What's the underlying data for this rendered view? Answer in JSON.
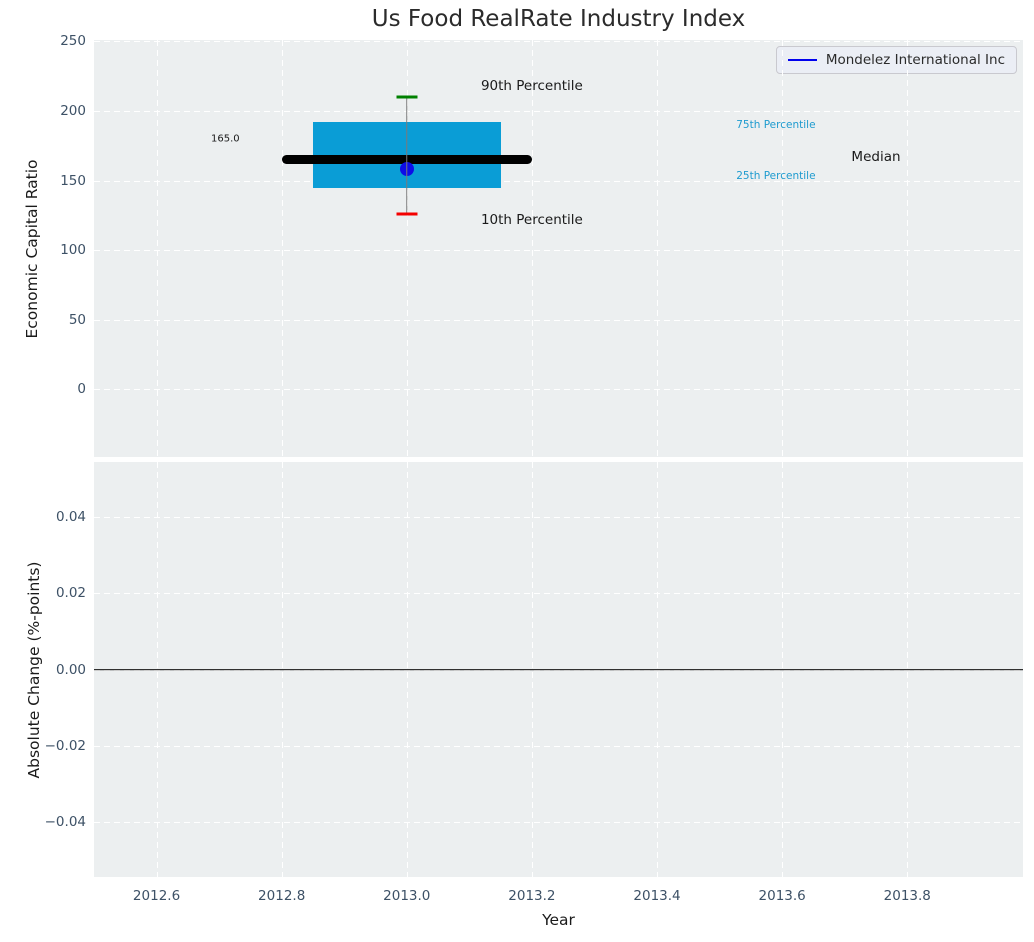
{
  "figure": {
    "background": "#ffffff",
    "axes_background": "#eceff0",
    "grid_color": "#ffffff",
    "tick_label_color": "#3d5166"
  },
  "legend": {
    "label": "Mondelez International Inc",
    "line_color": "#0000ee",
    "position": "upper right"
  },
  "chart_data": [
    {
      "type": "boxplot",
      "title": "Us Food RealRate Industry Index",
      "ylabel": "Economic Capital Ratio",
      "xlim": [
        2012.5,
        2013.985
      ],
      "ylim": [
        -48.5,
        251
      ],
      "ytick_values": [
        0,
        50,
        100,
        150,
        200,
        250
      ],
      "ytick_labels": [
        "0",
        "50",
        "100",
        "150",
        "200",
        "250"
      ],
      "xtick_values": [
        2012.6,
        2012.8,
        2013.0,
        2013.2,
        2013.4,
        2013.6,
        2013.8
      ],
      "xtick_labels": [
        "2012.6",
        "2012.8",
        "2013.0",
        "2013.2",
        "2013.4",
        "2013.6",
        "2013.8"
      ],
      "grid": true,
      "box": {
        "x_center": 2013.0,
        "box_x_range": [
          2012.85,
          2013.15
        ],
        "median_x_range": [
          2012.8,
          2013.2
        ],
        "p10": 126,
        "p25": 145,
        "median": 165,
        "p75": 192,
        "p90": 210
      },
      "company_point": {
        "name": "Mondelez International Inc",
        "x": 2013.0,
        "y": 158
      },
      "annotations": [
        {
          "name": "median-value-label",
          "text": "165.0",
          "x": 2012.71,
          "y": 180,
          "color": "#1a1a1a",
          "size": 10
        },
        {
          "name": "p90-label",
          "text": "90th Percentile",
          "x": 2013.2,
          "y": 218,
          "color": "#1a1a1a",
          "size": 13.5
        },
        {
          "name": "p10-label",
          "text": "10th Percentile",
          "x": 2013.2,
          "y": 122,
          "color": "#1a1a1a",
          "size": 13.5
        },
        {
          "name": "p75-label",
          "text": "75th Percentile",
          "x": 2013.59,
          "y": 190,
          "color": "#1e9bcf",
          "size": 10.5
        },
        {
          "name": "p25-label",
          "text": "25th Percentile",
          "x": 2013.59,
          "y": 153,
          "color": "#1e9bcf",
          "size": 10.5
        },
        {
          "name": "median-label",
          "text": "Median",
          "x": 2013.75,
          "y": 167,
          "color": "#1a1a1a",
          "size": 13.5
        }
      ],
      "colors": {
        "box_fill": "#0a9dd6",
        "median_line": "#000000",
        "whisker": "#7a7a7a",
        "cap_top": "#008000",
        "cap_bottom": "#f40000",
        "point": "#0d0de8"
      }
    },
    {
      "type": "line",
      "ylabel": "Absolute Change (%-points)",
      "xlabel": "Year",
      "xlim": [
        2012.5,
        2013.985
      ],
      "ylim": [
        -0.0545,
        0.0545
      ],
      "ytick_values": [
        0.04,
        0.02,
        0,
        -0.02,
        -0.04
      ],
      "ytick_labels": [
        "0.04",
        "0.02",
        "0.00",
        "−0.02",
        "−0.04"
      ],
      "xtick_values": [
        2012.6,
        2012.8,
        2013.0,
        2013.2,
        2013.4,
        2013.6,
        2013.8
      ],
      "xtick_labels": [
        "2012.6",
        "2012.8",
        "2013.0",
        "2013.2",
        "2013.4",
        "2013.6",
        "2013.8"
      ],
      "grid": true,
      "zero_line": 0.0
    }
  ]
}
